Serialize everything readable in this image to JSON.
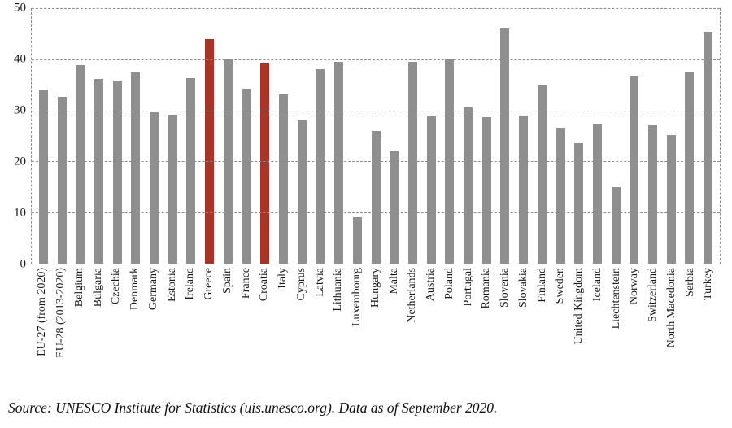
{
  "chart_data": {
    "type": "bar",
    "title": "",
    "xlabel": "",
    "ylabel": "",
    "ylim": [
      0,
      50
    ],
    "yticks": [
      0,
      10,
      20,
      30,
      40,
      50
    ],
    "grid": "dashed-horizontal",
    "legend": "none",
    "bar_color": "#8f8f8f",
    "highlight_color": "#a93528",
    "highlight_indices": [
      9,
      12
    ],
    "categories": [
      "EU-27 (from 2020)",
      "EU-28 (2013-2020)",
      "Belgium",
      "Bulgaria",
      "Czechia",
      "Denmark",
      "Germany",
      "Estonia",
      "Ireland",
      "Greece",
      "Spain",
      "France",
      "Croatia",
      "Italy",
      "Cyprus",
      "Latvia",
      "Lithuania",
      "Luxembourg",
      "Hungary",
      "Malta",
      "Netherlands",
      "Austria",
      "Poland",
      "Portugal",
      "Romania",
      "Slovenia",
      "Slovakia",
      "Finland",
      "Sweden",
      "United Kingdom",
      "Iceland",
      "Liechtenstein",
      "Norway",
      "Switzerland",
      "North Macedonia",
      "Serbia",
      "Turkey"
    ],
    "values": [
      34.1,
      32.6,
      38.9,
      36.1,
      35.8,
      37.4,
      29.6,
      29.1,
      36.3,
      44.0,
      39.9,
      34.2,
      39.4,
      33.2,
      28.0,
      38.0,
      39.5,
      9.0,
      25.9,
      22.0,
      39.5,
      28.8,
      40.2,
      30.6,
      28.6,
      46.0,
      29.0,
      35.0,
      26.6,
      23.6,
      27.4,
      15.0,
      36.7,
      27.1,
      25.2,
      37.6,
      45.4
    ]
  },
  "source_note": "Source: UNESCO Institute for Statistics (uis.unesco.org). Data as of September 2020."
}
